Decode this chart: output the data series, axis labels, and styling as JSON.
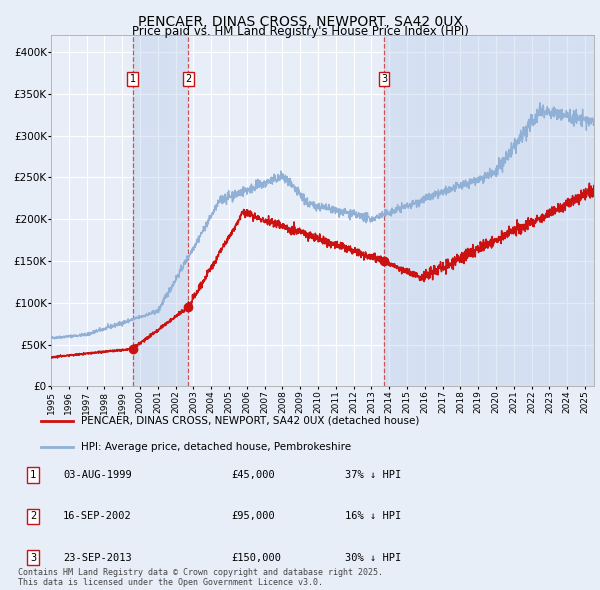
{
  "title": "PENCAER, DINAS CROSS, NEWPORT, SA42 0UX",
  "subtitle": "Price paid vs. HM Land Registry's House Price Index (HPI)",
  "title_fontsize": 10,
  "subtitle_fontsize": 8.5,
  "bg_color": "#e8eef8",
  "plot_bg_color": "#e8eef8",
  "grid_color": "#ffffff",
  "hpi_color": "#91b0d5",
  "price_color": "#cc1111",
  "sale_marker_color": "#cc1111",
  "ylim": [
    0,
    420000
  ],
  "yticks": [
    0,
    50000,
    100000,
    150000,
    200000,
    250000,
    300000,
    350000,
    400000
  ],
  "ytick_labels": [
    "£0",
    "£50K",
    "£100K",
    "£150K",
    "£200K",
    "£250K",
    "£300K",
    "£350K",
    "£400K"
  ],
  "sale_dates": [
    1999.58,
    2002.71,
    2013.72
  ],
  "sale_prices": [
    45000,
    95000,
    150000
  ],
  "sale_labels": [
    "1",
    "2",
    "3"
  ],
  "vline_color": "#cc4444",
  "shade_color": "#b0c8e8",
  "shade_alpha": 0.35,
  "legend_entries": [
    "PENCAER, DINAS CROSS, NEWPORT, SA42 0UX (detached house)",
    "HPI: Average price, detached house, Pembrokeshire"
  ],
  "table_data": [
    [
      "1",
      "03-AUG-1999",
      "£45,000",
      "37% ↓ HPI"
    ],
    [
      "2",
      "16-SEP-2002",
      "£95,000",
      "16% ↓ HPI"
    ],
    [
      "3",
      "23-SEP-2013",
      "£150,000",
      "30% ↓ HPI"
    ]
  ],
  "footnote": "Contains HM Land Registry data © Crown copyright and database right 2025.\nThis data is licensed under the Open Government Licence v3.0.",
  "xmin": 1995.0,
  "xmax": 2025.5
}
